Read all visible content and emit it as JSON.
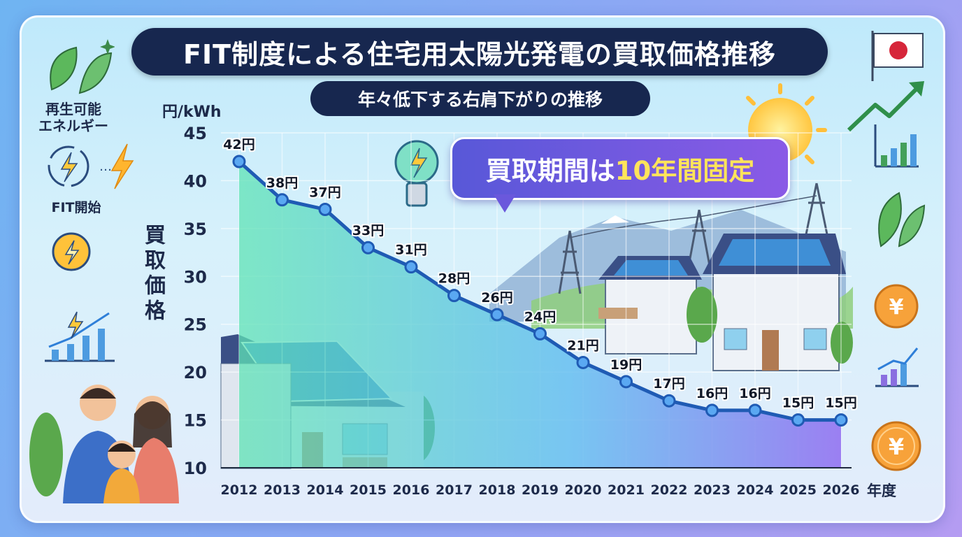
{
  "title": "FIT制度による住宅用太陽光発電の買取価格推移",
  "subtitle": "年々低下する右肩下がりの推移",
  "callout": {
    "before": "買取期間は",
    "highlight": "10年間固定"
  },
  "sidebar": {
    "renewable_label": "再生可能\nエネルギー",
    "fit_start_label": "FIT開始"
  },
  "colors": {
    "line": "#1f5bb4",
    "title_bg": "#17274f",
    "callout_from": "#5858d8",
    "callout_to": "#8a5ae6",
    "highlight": "#ffe45a"
  },
  "chart_data": {
    "type": "line",
    "ylabel_unit": "円/kWh",
    "ylabel": "買取価格",
    "xlabel": "年度",
    "ylim": [
      10,
      45
    ],
    "yticks": [
      10,
      15,
      20,
      25,
      30,
      35,
      40,
      45
    ],
    "grid": true,
    "x": [
      "2012",
      "2013",
      "2014",
      "2015",
      "2016",
      "2017",
      "2018",
      "2019",
      "2020",
      "2021",
      "2022",
      "2023",
      "2024",
      "2025",
      "2026"
    ],
    "series": [
      {
        "values": [
          42,
          38,
          37,
          33,
          31,
          28,
          26,
          24,
          21,
          19,
          17,
          16,
          16,
          15,
          15
        ],
        "labels": [
          "42円",
          "38円",
          "37円",
          "33円",
          "31円",
          "28円",
          "26円",
          "24円",
          "21円",
          "19円",
          "17円",
          "16円",
          "16円",
          "15円",
          "15円"
        ]
      }
    ]
  }
}
